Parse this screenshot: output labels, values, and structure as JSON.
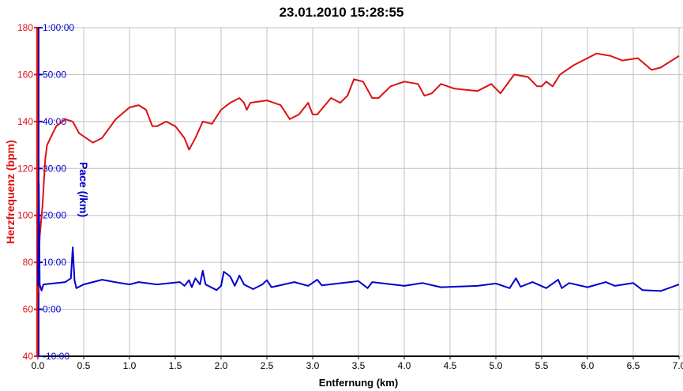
{
  "chart_data": {
    "type": "line",
    "title": "23.01.2010 15:28:55",
    "xlabel": "Entfernung (km)",
    "ylabel": "Herzfrequenz (bpm)",
    "y2label": "Pace (/km)",
    "xlim": [
      0,
      7
    ],
    "ylim": [
      40,
      180
    ],
    "y2lim_minutes": [
      -10,
      60
    ],
    "grid": true,
    "xticks": [
      "0.0",
      "0.5",
      "1.0",
      "1.5",
      "2.0",
      "2.5",
      "3.0",
      "3.5",
      "4.0",
      "4.5",
      "5.0",
      "5.5",
      "6.0",
      "6.5",
      "7.0"
    ],
    "yticks": [
      "40",
      "60",
      "80",
      "100",
      "120",
      "140",
      "160",
      "180"
    ],
    "y2ticks": [
      "-10:00",
      "0:00",
      "10:00",
      "20:00",
      "30:00",
      "40:00",
      "50:00",
      "1:00:00"
    ],
    "colors": {
      "heart_rate": "#dd1111",
      "pace": "#0000cc",
      "grid": "#c0c0c0"
    },
    "series": [
      {
        "key": "heart_rate",
        "axis": "left",
        "x": [
          0,
          0.02,
          0.05,
          0.08,
          0.1,
          0.2,
          0.3,
          0.38,
          0.45,
          0.6,
          0.7,
          0.85,
          1.0,
          1.1,
          1.18,
          1.25,
          1.3,
          1.4,
          1.5,
          1.6,
          1.65,
          1.72,
          1.8,
          1.9,
          2.0,
          2.1,
          2.2,
          2.25,
          2.28,
          2.32,
          2.5,
          2.65,
          2.75,
          2.85,
          2.95,
          3.0,
          3.05,
          3.2,
          3.3,
          3.38,
          3.45,
          3.55,
          3.65,
          3.72,
          3.85,
          4.0,
          4.15,
          4.22,
          4.3,
          4.4,
          4.55,
          4.8,
          4.95,
          5.05,
          5.2,
          5.35,
          5.45,
          5.5,
          5.55,
          5.62,
          5.7,
          5.85,
          6.0,
          6.1,
          6.25,
          6.38,
          6.55,
          6.7,
          6.8,
          7.0
        ],
        "values": [
          67,
          91,
          104,
          124,
          130,
          138,
          141,
          140,
          135,
          131,
          133,
          141,
          146,
          147,
          145,
          138,
          138,
          140,
          138,
          133,
          128,
          133,
          140,
          139,
          145,
          148,
          150,
          148,
          145,
          148,
          149,
          147,
          141,
          143,
          148,
          143,
          143,
          150,
          148,
          151,
          158,
          157,
          150,
          150,
          155,
          157,
          156,
          151,
          152,
          156,
          154,
          153,
          156,
          152,
          160,
          159,
          155,
          155,
          157,
          155,
          160,
          164,
          167,
          169,
          168,
          166,
          167,
          162,
          163,
          168
        ]
      },
      {
        "key": "pace",
        "axis": "right",
        "unit": "minutes per km",
        "x": [
          0,
          0.01,
          0.02,
          0.04,
          0.06,
          0.3,
          0.36,
          0.38,
          0.4,
          0.42,
          0.5,
          0.7,
          0.9,
          1.0,
          1.1,
          1.3,
          1.55,
          1.6,
          1.65,
          1.68,
          1.72,
          1.77,
          1.8,
          1.83,
          1.95,
          2.0,
          2.03,
          2.1,
          2.15,
          2.2,
          2.25,
          2.35,
          2.45,
          2.5,
          2.55,
          2.8,
          2.95,
          3.05,
          3.1,
          3.5,
          3.6,
          3.65,
          4.0,
          4.2,
          4.4,
          4.8,
          5.0,
          5.15,
          5.22,
          5.27,
          5.4,
          5.55,
          5.68,
          5.72,
          5.8,
          6.0,
          6.2,
          6.3,
          6.5,
          6.6,
          6.8,
          7.0
        ],
        "values": [
          5,
          26.8,
          5.3,
          4,
          5.3,
          5.8,
          6.6,
          13.2,
          6.2,
          4.5,
          5.3,
          6.3,
          5.6,
          5.3,
          5.8,
          5.3,
          5.8,
          5,
          6.2,
          4.7,
          6.6,
          5.3,
          8.2,
          5.3,
          4.1,
          5,
          8,
          7,
          5,
          7.2,
          5.3,
          4.3,
          5.3,
          6.2,
          4.7,
          5.8,
          5,
          6.3,
          5.1,
          6,
          4.5,
          5.8,
          5,
          5.6,
          4.7,
          5,
          5.5,
          4.5,
          6.6,
          4.8,
          5.8,
          4.5,
          6.3,
          4.5,
          5.6,
          4.7,
          5.8,
          5,
          5.6,
          4.1,
          3.9,
          5.3
        ]
      }
    ]
  }
}
